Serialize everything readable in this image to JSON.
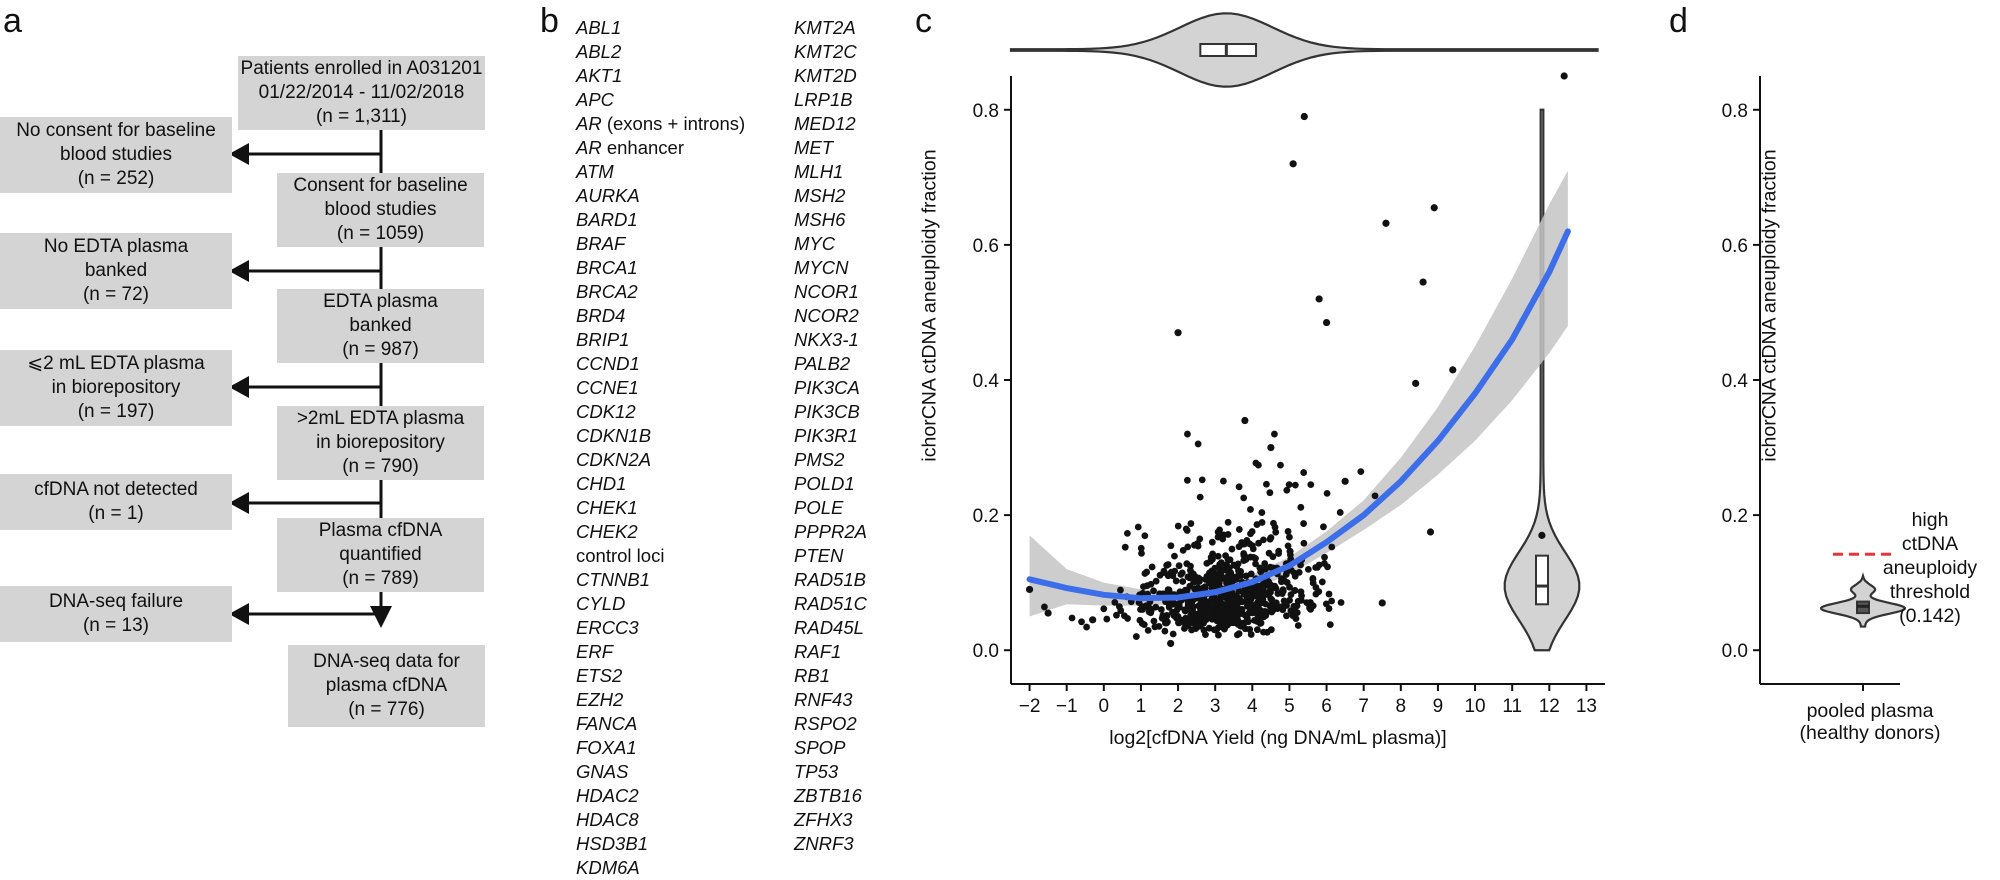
{
  "panels": {
    "a": "a",
    "b": "b",
    "c": "c",
    "d": "d"
  },
  "flowchart": {
    "main_boxes": [
      {
        "lines": [
          "Patients enrolled in A031201",
          "01/22/2014 - 11/02/2018",
          "(n = 1,311)"
        ]
      },
      {
        "lines": [
          "Consent for baseline",
          "blood studies",
          "(n = 1059)"
        ]
      },
      {
        "lines": [
          "EDTA plasma",
          "banked",
          "(n = 987)"
        ]
      },
      {
        "lines": [
          ">2mL EDTA plasma",
          "in biorepository",
          "(n = 790)"
        ]
      },
      {
        "lines": [
          "Plasma cfDNA",
          "quantified",
          "(n = 789)"
        ]
      },
      {
        "lines": [
          "DNA-seq data for",
          "plasma cfDNA",
          "(n = 776)"
        ]
      }
    ],
    "exclusion_boxes": [
      {
        "lines": [
          "No consent for baseline",
          "blood studies",
          "(n = 252)"
        ]
      },
      {
        "lines": [
          "No EDTA plasma",
          "banked",
          "(n = 72)"
        ]
      },
      {
        "lines": [
          "⩽2 mL EDTA plasma",
          "in biorepository",
          "(n = 197)"
        ]
      },
      {
        "lines": [
          "cfDNA not detected",
          "(n = 1)"
        ]
      },
      {
        "lines": [
          "DNA-seq failure",
          "(n = 13)"
        ]
      }
    ]
  },
  "gene_panel": {
    "col1": [
      {
        "gene": "ABL1"
      },
      {
        "gene": "ABL2"
      },
      {
        "gene": "AKT1"
      },
      {
        "gene": "APC"
      },
      {
        "gene": "AR",
        "suffix": " (exons + introns)"
      },
      {
        "gene": "AR",
        "suffix": " enhancer"
      },
      {
        "gene": "ATM"
      },
      {
        "gene": "AURKA"
      },
      {
        "gene": "BARD1"
      },
      {
        "gene": "BRAF"
      },
      {
        "gene": "BRCA1"
      },
      {
        "gene": "BRCA2"
      },
      {
        "gene": "BRD4"
      },
      {
        "gene": "BRIP1"
      },
      {
        "gene": "CCND1"
      },
      {
        "gene": "CCNE1"
      },
      {
        "gene": "CDK12"
      },
      {
        "gene": "CDKN1B"
      },
      {
        "gene": "CDKN2A"
      },
      {
        "gene": "CHD1"
      },
      {
        "gene": "CHEK1"
      },
      {
        "gene": "CHEK2"
      },
      {
        "gene": "control loci",
        "plain": true
      },
      {
        "gene": "CTNNB1"
      },
      {
        "gene": "CYLD"
      },
      {
        "gene": "ERCC3"
      },
      {
        "gene": "ERF"
      },
      {
        "gene": "ETS2"
      },
      {
        "gene": "EZH2"
      },
      {
        "gene": "FANCA"
      },
      {
        "gene": "FOXA1"
      },
      {
        "gene": "GNAS"
      },
      {
        "gene": "HDAC2"
      },
      {
        "gene": "HDAC8"
      },
      {
        "gene": "HSD3B1"
      },
      {
        "gene": "KDM6A"
      }
    ],
    "col2": [
      "KMT2A",
      "KMT2C",
      "KMT2D",
      "LRP1B",
      "MED12",
      "MET",
      "MLH1",
      "MSH2",
      "MSH6",
      "MYC",
      "MYCN",
      "NCOR1",
      "NCOR2",
      "NKX3-1",
      "PALB2",
      "PIK3CA",
      "PIK3CB",
      "PIK3R1",
      "PMS2",
      "POLD1",
      "POLE",
      "PPPR2A",
      "PTEN",
      "RAD51B",
      "RAD51C",
      "RAD45L",
      "RAF1",
      "RB1",
      "RNF43",
      "RSPO2",
      "SPOP",
      "TP53",
      "ZBTB16",
      "ZFHX3",
      "ZNRF3"
    ]
  },
  "chart_data": [
    {
      "type": "scatter",
      "xlabel": "log2[cfDNA Yield (ng DNA/mL plasma)]",
      "ylabel": "ichorCNA ctDNA aneuploidy fraction",
      "xlim": [
        -2.5,
        13.5
      ],
      "ylim": [
        -0.05,
        0.85
      ],
      "xticks": [
        -2,
        -1,
        0,
        1,
        2,
        3,
        4,
        5,
        6,
        7,
        8,
        9,
        10,
        11,
        12,
        13
      ],
      "yticks": [
        0.0,
        0.2,
        0.4,
        0.6,
        0.8
      ],
      "ytick_labels": [
        "0.0",
        "0.2",
        "0.4",
        "0.6",
        "0.8"
      ],
      "colors": {
        "points": "#111111",
        "fit_line": "#3d6eea",
        "ci_band": "#c4c4c4",
        "violin": "#d3d3d3"
      },
      "fit": {
        "type": "quadratic",
        "x": [
          -2,
          -1,
          0,
          1,
          2,
          3,
          4,
          5,
          6,
          7,
          8,
          9,
          10,
          11,
          12,
          12.5
        ],
        "y": [
          0.105,
          0.092,
          0.082,
          0.077,
          0.078,
          0.086,
          0.101,
          0.125,
          0.16,
          0.2,
          0.25,
          0.31,
          0.38,
          0.46,
          0.56,
          0.62
        ],
        "ci_upper": [
          0.17,
          0.12,
          0.1,
          0.09,
          0.088,
          0.096,
          0.112,
          0.138,
          0.176,
          0.222,
          0.285,
          0.36,
          0.45,
          0.55,
          0.66,
          0.71
        ],
        "ci_lower": [
          0.05,
          0.068,
          0.066,
          0.066,
          0.068,
          0.076,
          0.09,
          0.112,
          0.144,
          0.178,
          0.215,
          0.26,
          0.31,
          0.37,
          0.44,
          0.48
        ]
      },
      "outliers": [
        {
          "x": 12.4,
          "y": 0.85
        },
        {
          "x": 5.4,
          "y": 0.79
        },
        {
          "x": 5.1,
          "y": 0.72
        },
        {
          "x": 8.9,
          "y": 0.655
        },
        {
          "x": 7.6,
          "y": 0.632
        },
        {
          "x": 8.6,
          "y": 0.545
        },
        {
          "x": 5.8,
          "y": 0.52
        },
        {
          "x": 2.0,
          "y": 0.47
        },
        {
          "x": 6.0,
          "y": 0.485
        },
        {
          "x": 9.4,
          "y": 0.415
        },
        {
          "x": 8.4,
          "y": 0.395
        },
        {
          "x": 8.8,
          "y": 0.175
        },
        {
          "x": 11.8,
          "y": 0.17
        },
        {
          "x": 7.5,
          "y": 0.07
        },
        {
          "x": -2.0,
          "y": 0.09
        },
        {
          "x": -1.5,
          "y": 0.055
        },
        {
          "x": -0.3,
          "y": 0.045
        },
        {
          "x": 1.8,
          "y": 0.01
        },
        {
          "x": 3.8,
          "y": 0.34
        },
        {
          "x": 4.5,
          "y": 0.3
        },
        {
          "x": 6.5,
          "y": 0.25
        }
      ],
      "cluster": {
        "n": 760,
        "x_mean": 3.3,
        "x_sd": 1.3,
        "y_base": 0.02,
        "y_scale": 0.12,
        "seed": 17
      },
      "top_marginal": {
        "type": "violin",
        "variable": "log2 cfDNA yield",
        "median": 3.3,
        "q1": 2.6,
        "q3": 4.1
      },
      "right_marginal": {
        "type": "violin",
        "variable": "ichorCNA fraction",
        "median": 0.095,
        "q1": 0.068,
        "q3": 0.14,
        "min": 0.0,
        "max": 0.8
      }
    },
    {
      "type": "violin",
      "ylabel": "ichorCNA ctDNA aneuploidy fraction",
      "categories": [
        "pooled plasma\n(healthy donors)"
      ],
      "category_lines": [
        "pooled plasma",
        "(healthy donors)"
      ],
      "ylim": [
        -0.05,
        0.85
      ],
      "yticks": [
        0.0,
        0.2,
        0.4,
        0.6,
        0.8
      ],
      "ytick_labels": [
        "0.0",
        "0.2",
        "0.4",
        "0.6",
        "0.8"
      ],
      "median": 0.065,
      "threshold": {
        "value": 0.142,
        "color": "#e8333a",
        "label_lines": [
          "high",
          "ctDNA",
          "aneuploidy",
          "threshold",
          "(0.142)"
        ]
      }
    }
  ]
}
